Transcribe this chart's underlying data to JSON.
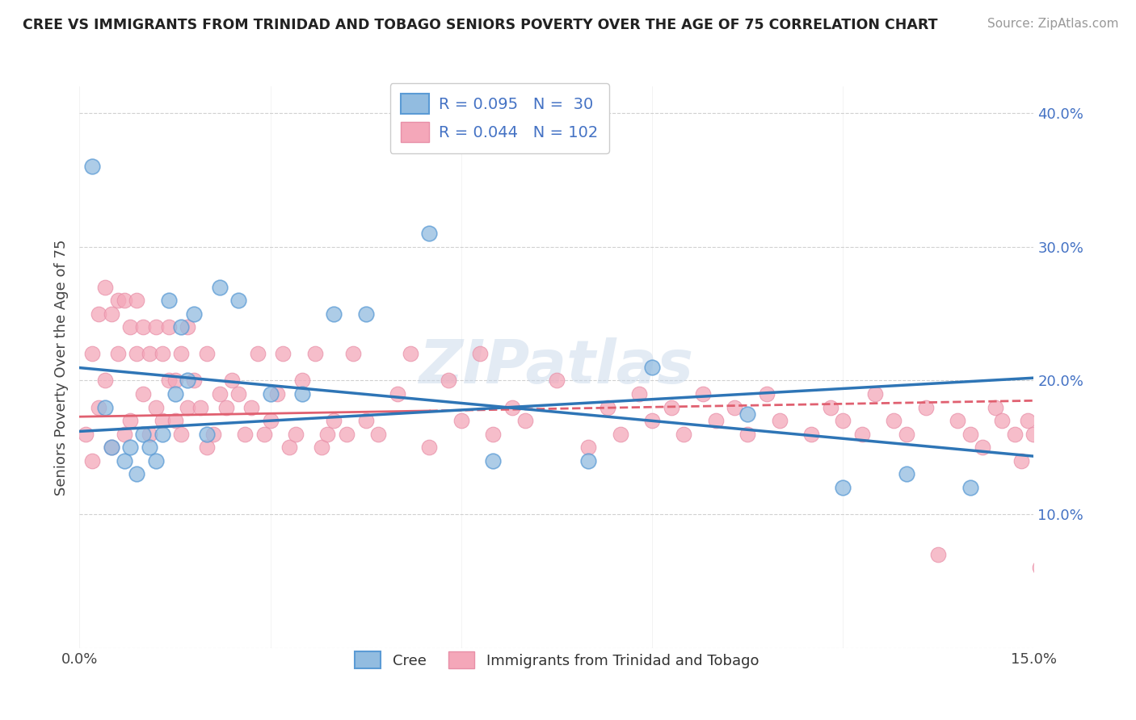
{
  "title": "CREE VS IMMIGRANTS FROM TRINIDAD AND TOBAGO SENIORS POVERTY OVER THE AGE OF 75 CORRELATION CHART",
  "source": "Source: ZipAtlas.com",
  "ylabel": "Seniors Poverty Over the Age of 75",
  "xlim": [
    0.0,
    0.15
  ],
  "ylim": [
    0.0,
    0.42
  ],
  "xticks": [
    0.0,
    0.03,
    0.06,
    0.09,
    0.12,
    0.15
  ],
  "xtick_labels": [
    "0.0%",
    "",
    "",
    "",
    "",
    "15.0%"
  ],
  "yticks": [
    0.0,
    0.1,
    0.2,
    0.3,
    0.4
  ],
  "ytick_labels": [
    "",
    "10.0%",
    "20.0%",
    "30.0%",
    "40.0%"
  ],
  "legend_labels": [
    "Cree",
    "Immigrants from Trinidad and Tobago"
  ],
  "cree_color": "#92bce0",
  "cree_edge_color": "#5b9bd5",
  "tt_color": "#f4a7b9",
  "tt_edge_color": "#e88fa8",
  "cree_line_color": "#2e75b6",
  "tt_line_color": "#e06070",
  "cree_R": 0.095,
  "cree_N": 30,
  "tt_R": 0.044,
  "tt_N": 102,
  "watermark": "ZIPatlas",
  "cree_scatter_x": [
    0.002,
    0.004,
    0.005,
    0.007,
    0.008,
    0.009,
    0.01,
    0.011,
    0.012,
    0.013,
    0.014,
    0.015,
    0.016,
    0.017,
    0.018,
    0.02,
    0.022,
    0.025,
    0.03,
    0.035,
    0.04,
    0.045,
    0.055,
    0.065,
    0.08,
    0.09,
    0.105,
    0.12,
    0.13,
    0.14
  ],
  "cree_scatter_y": [
    0.36,
    0.18,
    0.15,
    0.14,
    0.15,
    0.13,
    0.16,
    0.15,
    0.14,
    0.16,
    0.26,
    0.19,
    0.24,
    0.2,
    0.25,
    0.16,
    0.27,
    0.26,
    0.19,
    0.19,
    0.25,
    0.25,
    0.31,
    0.14,
    0.14,
    0.21,
    0.175,
    0.12,
    0.13,
    0.12
  ],
  "tt_scatter_x": [
    0.001,
    0.002,
    0.002,
    0.003,
    0.003,
    0.004,
    0.004,
    0.005,
    0.005,
    0.006,
    0.006,
    0.007,
    0.007,
    0.008,
    0.008,
    0.009,
    0.009,
    0.01,
    0.01,
    0.011,
    0.011,
    0.012,
    0.012,
    0.013,
    0.013,
    0.014,
    0.014,
    0.015,
    0.015,
    0.016,
    0.016,
    0.017,
    0.017,
    0.018,
    0.019,
    0.02,
    0.02,
    0.021,
    0.022,
    0.023,
    0.024,
    0.025,
    0.026,
    0.027,
    0.028,
    0.029,
    0.03,
    0.031,
    0.032,
    0.033,
    0.034,
    0.035,
    0.037,
    0.038,
    0.039,
    0.04,
    0.042,
    0.043,
    0.045,
    0.047,
    0.05,
    0.052,
    0.055,
    0.058,
    0.06,
    0.063,
    0.065,
    0.068,
    0.07,
    0.075,
    0.08,
    0.083,
    0.085,
    0.088,
    0.09,
    0.093,
    0.095,
    0.098,
    0.1,
    0.103,
    0.105,
    0.108,
    0.11,
    0.115,
    0.118,
    0.12,
    0.123,
    0.125,
    0.128,
    0.13,
    0.133,
    0.135,
    0.138,
    0.14,
    0.142,
    0.144,
    0.145,
    0.147,
    0.148,
    0.149,
    0.15,
    0.151
  ],
  "tt_scatter_y": [
    0.16,
    0.14,
    0.22,
    0.18,
    0.25,
    0.2,
    0.27,
    0.15,
    0.25,
    0.22,
    0.26,
    0.16,
    0.26,
    0.24,
    0.17,
    0.22,
    0.26,
    0.19,
    0.24,
    0.22,
    0.16,
    0.24,
    0.18,
    0.22,
    0.17,
    0.2,
    0.24,
    0.2,
    0.17,
    0.22,
    0.16,
    0.24,
    0.18,
    0.2,
    0.18,
    0.15,
    0.22,
    0.16,
    0.19,
    0.18,
    0.2,
    0.19,
    0.16,
    0.18,
    0.22,
    0.16,
    0.17,
    0.19,
    0.22,
    0.15,
    0.16,
    0.2,
    0.22,
    0.15,
    0.16,
    0.17,
    0.16,
    0.22,
    0.17,
    0.16,
    0.19,
    0.22,
    0.15,
    0.2,
    0.17,
    0.22,
    0.16,
    0.18,
    0.17,
    0.2,
    0.15,
    0.18,
    0.16,
    0.19,
    0.17,
    0.18,
    0.16,
    0.19,
    0.17,
    0.18,
    0.16,
    0.19,
    0.17,
    0.16,
    0.18,
    0.17,
    0.16,
    0.19,
    0.17,
    0.16,
    0.18,
    0.07,
    0.17,
    0.16,
    0.15,
    0.18,
    0.17,
    0.16,
    0.14,
    0.17,
    0.16,
    0.06
  ]
}
